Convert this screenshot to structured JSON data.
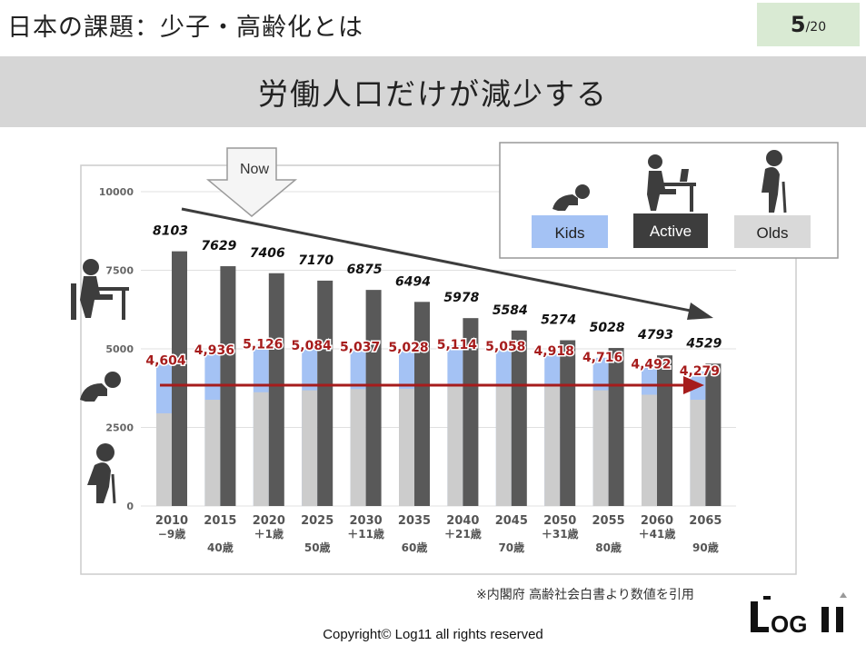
{
  "header": {
    "title": "日本の課題：少子・高齢化とは",
    "page_current": "5",
    "page_total": "/20"
  },
  "banner": {
    "heading": "労働人口だけが減少する"
  },
  "now_marker": {
    "label": "Now"
  },
  "legend": {
    "kids": "Kids",
    "active": "Active",
    "olds": "Olds",
    "colors": {
      "kids": "#a4c2f4",
      "active": "#595959",
      "olds": "#cccccc"
    }
  },
  "chart_data": {
    "type": "bar",
    "categories": [
      "2010",
      "2015",
      "2020",
      "2025",
      "2030",
      "2035",
      "2040",
      "2045",
      "2050",
      "2055",
      "2060",
      "2065"
    ],
    "sub_labels": [
      "−9歳",
      "40歳",
      "＋1歳",
      "50歳",
      "＋11歳",
      "60歳",
      "＋21歳",
      "70歳",
      "＋31歳",
      "80歳",
      "＋41歳",
      "90歳"
    ],
    "series": [
      {
        "name": "Olds",
        "values": [
          2950,
          3380,
          3620,
          3680,
          3720,
          3730,
          3860,
          3860,
          3820,
          3680,
          3540,
          3380
        ]
      },
      {
        "name": "Kids",
        "values": [
          4604,
          4936,
          5126,
          5084,
          5037,
          5028,
          5114,
          5058,
          4918,
          4716,
          4492,
          4279
        ],
        "labels": [
          "4,604",
          "4,936",
          "5,126",
          "5,084",
          "5,037",
          "5,028",
          "5,114",
          "5,058",
          "4,918",
          "4,716",
          "4,492",
          "4,279"
        ]
      },
      {
        "name": "Active",
        "values": [
          8103,
          7629,
          7406,
          7170,
          6875,
          6494,
          5978,
          5584,
          5274,
          5028,
          4793,
          4529
        ]
      }
    ],
    "yticks": [
      "10000",
      "7500",
      "5000",
      "2500",
      "0"
    ],
    "ylim": [
      0,
      10000
    ],
    "grid": true,
    "colors": {
      "olds": "#cccccc",
      "kids": "#a4c2f4",
      "active": "#595959",
      "labels_red": "#a61c1c"
    }
  },
  "footer": {
    "source": "※内閣府 高齢社会白書より数値を引用",
    "copyright": "Copyright© Log11 all rights reserved",
    "logo_text": "LOG11"
  }
}
